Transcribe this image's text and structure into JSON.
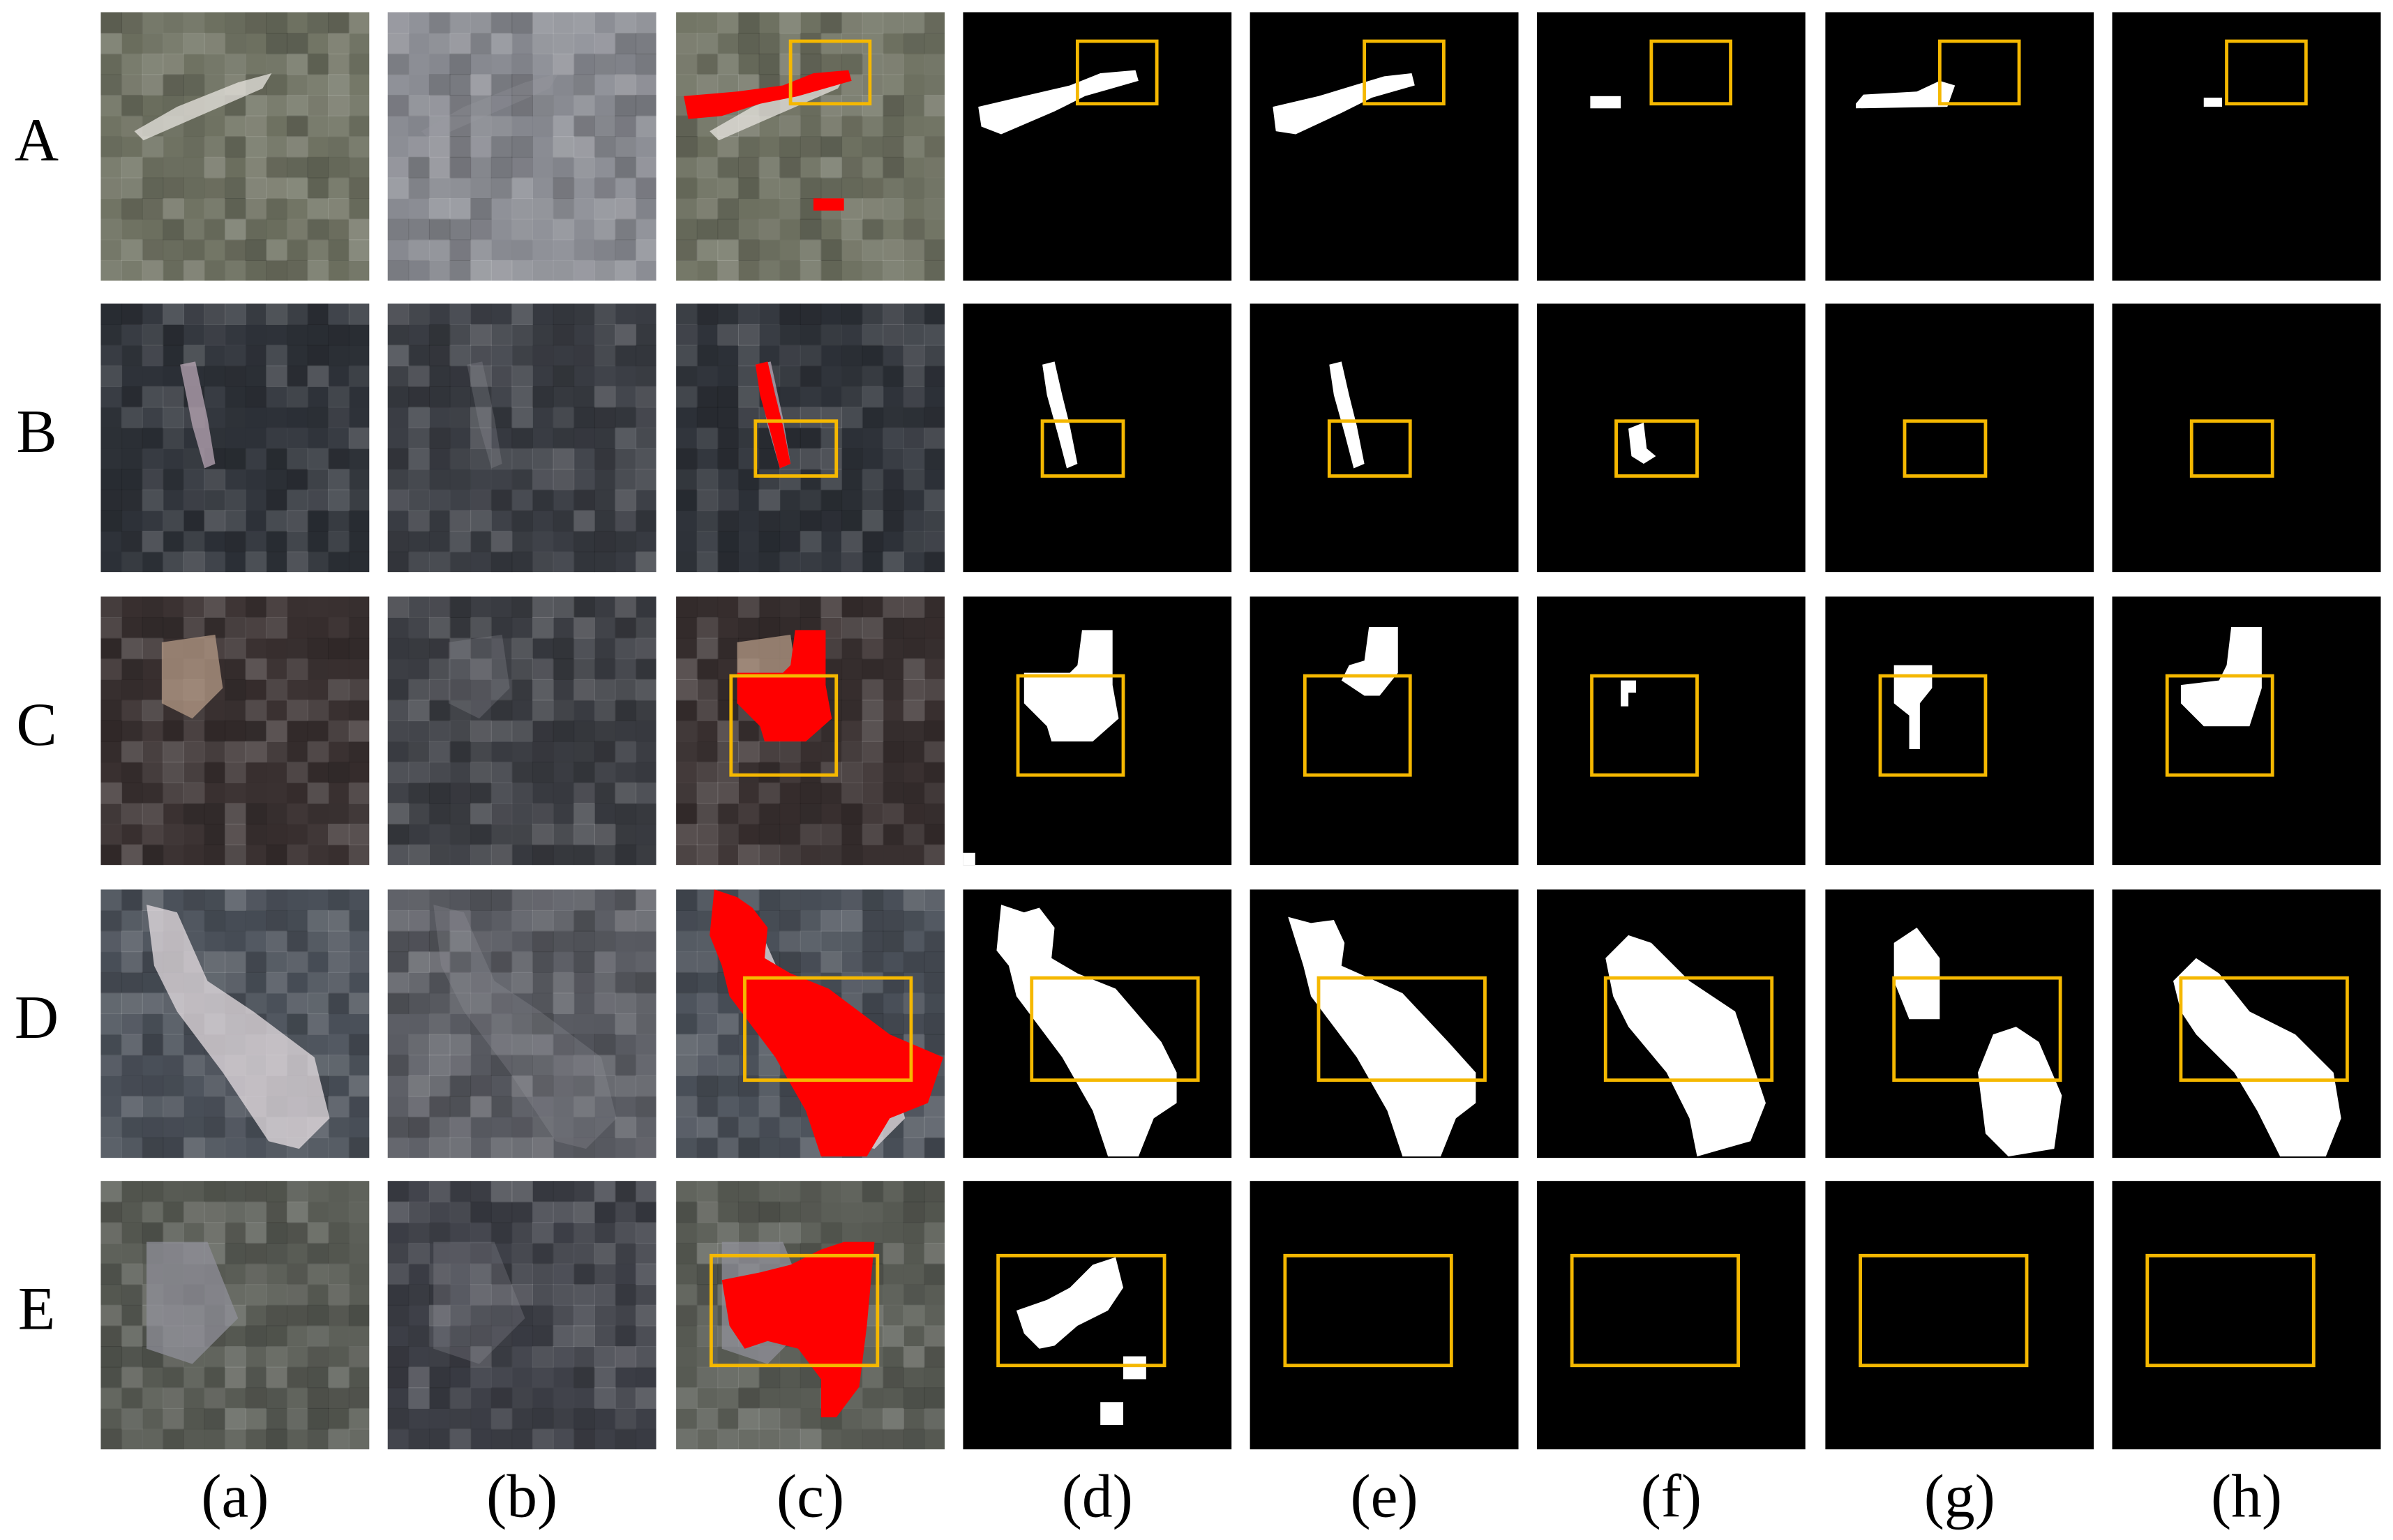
{
  "rows": [
    "A",
    "B",
    "C",
    "D",
    "E"
  ],
  "columns": [
    "(a)",
    "(b)",
    "(c)",
    "(d)",
    "(e)",
    "(f)",
    "(g)",
    "(h)"
  ]
}
